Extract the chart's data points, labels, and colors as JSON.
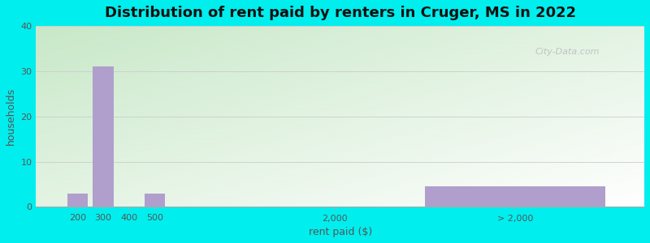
{
  "title": "Distribution of rent paid by renters in Cruger, MS in 2022",
  "xlabel": "rent paid ($)",
  "ylabel": "households",
  "bar_color": "#b09fcc",
  "background_outer": "#00EEEE",
  "background_inner_left": "#c8e8c0",
  "background_inner_right": "#f0fff0",
  "yticks": [
    0,
    10,
    20,
    30,
    40
  ],
  "ylim": [
    0,
    40
  ],
  "xtick_labels": [
    "200",
    "300",
    "400",
    "500",
    "2,000",
    "> 2,000"
  ],
  "x_positions": [
    0.5,
    1.0,
    1.5,
    2.0,
    5.5,
    9.0
  ],
  "bar_widths": [
    0.4,
    0.4,
    0.4,
    0.4,
    0.4,
    3.5
  ],
  "values": [
    3,
    31,
    0,
    3,
    0,
    4.5
  ],
  "xlim": [
    -0.3,
    11.5
  ],
  "watermark": "City-Data.com",
  "title_fontsize": 13,
  "axis_label_fontsize": 9,
  "tick_fontsize": 8
}
